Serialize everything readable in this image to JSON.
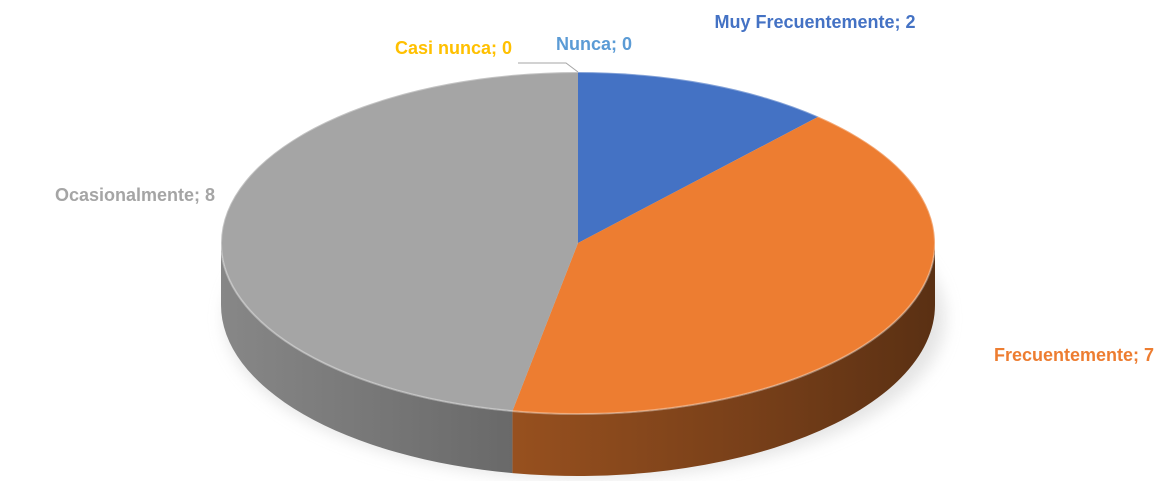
{
  "chart_data": {
    "type": "pie",
    "values": [
      2,
      7,
      8,
      0,
      0
    ],
    "value_labels": [
      "Muy Frecuentemente; 2",
      "Frecuentemente; 7",
      "Ocasionalmente; 8",
      "Casi nunca; 0",
      "Nunca; 0"
    ],
    "colors": [
      "#4472c4",
      "#ed7d31",
      "#a5a5a5",
      "#ffc000",
      "#5b9bd5"
    ]
  }
}
